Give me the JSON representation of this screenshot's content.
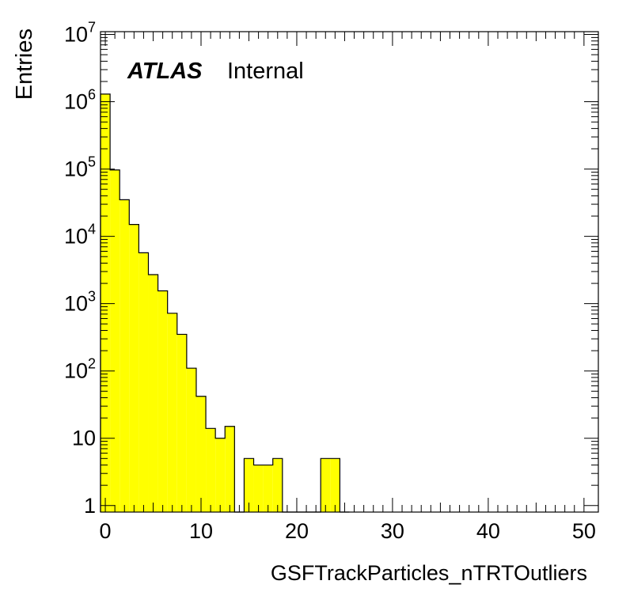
{
  "chart_data": {
    "type": "bar",
    "histogram": true,
    "xlabel": "GSFTrackParticles_nTRTOutliers",
    "ylabel": "Entries",
    "xlim": [
      -0.5,
      51.5
    ],
    "ylim": [
      0.8,
      11000000
    ],
    "log_y": true,
    "grid": false,
    "bin_width": 1,
    "bin_low_edges": [
      -0.5,
      0.5,
      1.5,
      2.5,
      3.5,
      4.5,
      5.5,
      6.5,
      7.5,
      8.5,
      9.5,
      10.5,
      11.5,
      12.5,
      13.5,
      14.5,
      15.5,
      16.5,
      17.5,
      18.5,
      19.5,
      20.5,
      21.5,
      22.5,
      23.5,
      24.5
    ],
    "values": [
      1300000,
      97000,
      35000,
      15000,
      5700,
      2700,
      1550,
      720,
      350,
      110,
      42,
      14,
      10,
      15,
      0,
      5,
      4,
      4,
      5,
      0,
      0,
      0,
      0,
      5,
      5,
      0
    ],
    "x_ticks": [
      "0",
      "10",
      "20",
      "30",
      "40",
      "50"
    ],
    "y_ticks": [
      "1",
      "10",
      "10^2",
      "10^3",
      "10^4",
      "10^5",
      "10^6",
      "10^7"
    ],
    "fill_color": "#ffff00",
    "line_color": "#000000",
    "annotation": {
      "bold": "ATLAS",
      "normal": "Internal"
    }
  }
}
